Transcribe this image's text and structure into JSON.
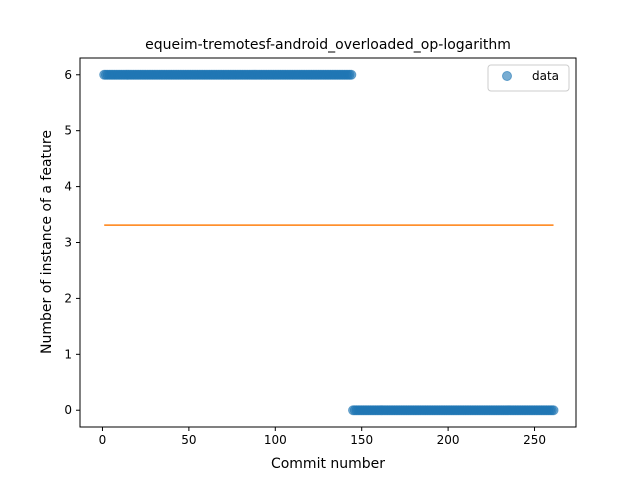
{
  "chart_data": {
    "type": "scatter",
    "title": "equeim-tremotesf-android_overloaded_op-logarithm",
    "xlabel": "Commit number",
    "ylabel": "Number of instance of a feature",
    "xlim": [
      -13,
      274
    ],
    "ylim": [
      -0.3,
      6.3
    ],
    "x_ticks": [
      0,
      50,
      100,
      150,
      200,
      250
    ],
    "y_ticks": [
      0,
      1,
      2,
      3,
      4,
      5,
      6
    ],
    "grid": false,
    "legend": {
      "position": "top-right",
      "entries": [
        "data"
      ]
    },
    "series": [
      {
        "name": "data",
        "kind": "scatter",
        "color": "#1f77b4",
        "alpha": 0.6,
        "segments": [
          {
            "x_start": 1,
            "x_end": 144,
            "y": 6
          },
          {
            "x_start": 145,
            "x_end": 261,
            "y": 0
          }
        ]
      },
      {
        "kind": "line",
        "color": "#ff7f0e",
        "x": [
          1,
          261
        ],
        "y": [
          3.31,
          3.31
        ]
      }
    ]
  }
}
